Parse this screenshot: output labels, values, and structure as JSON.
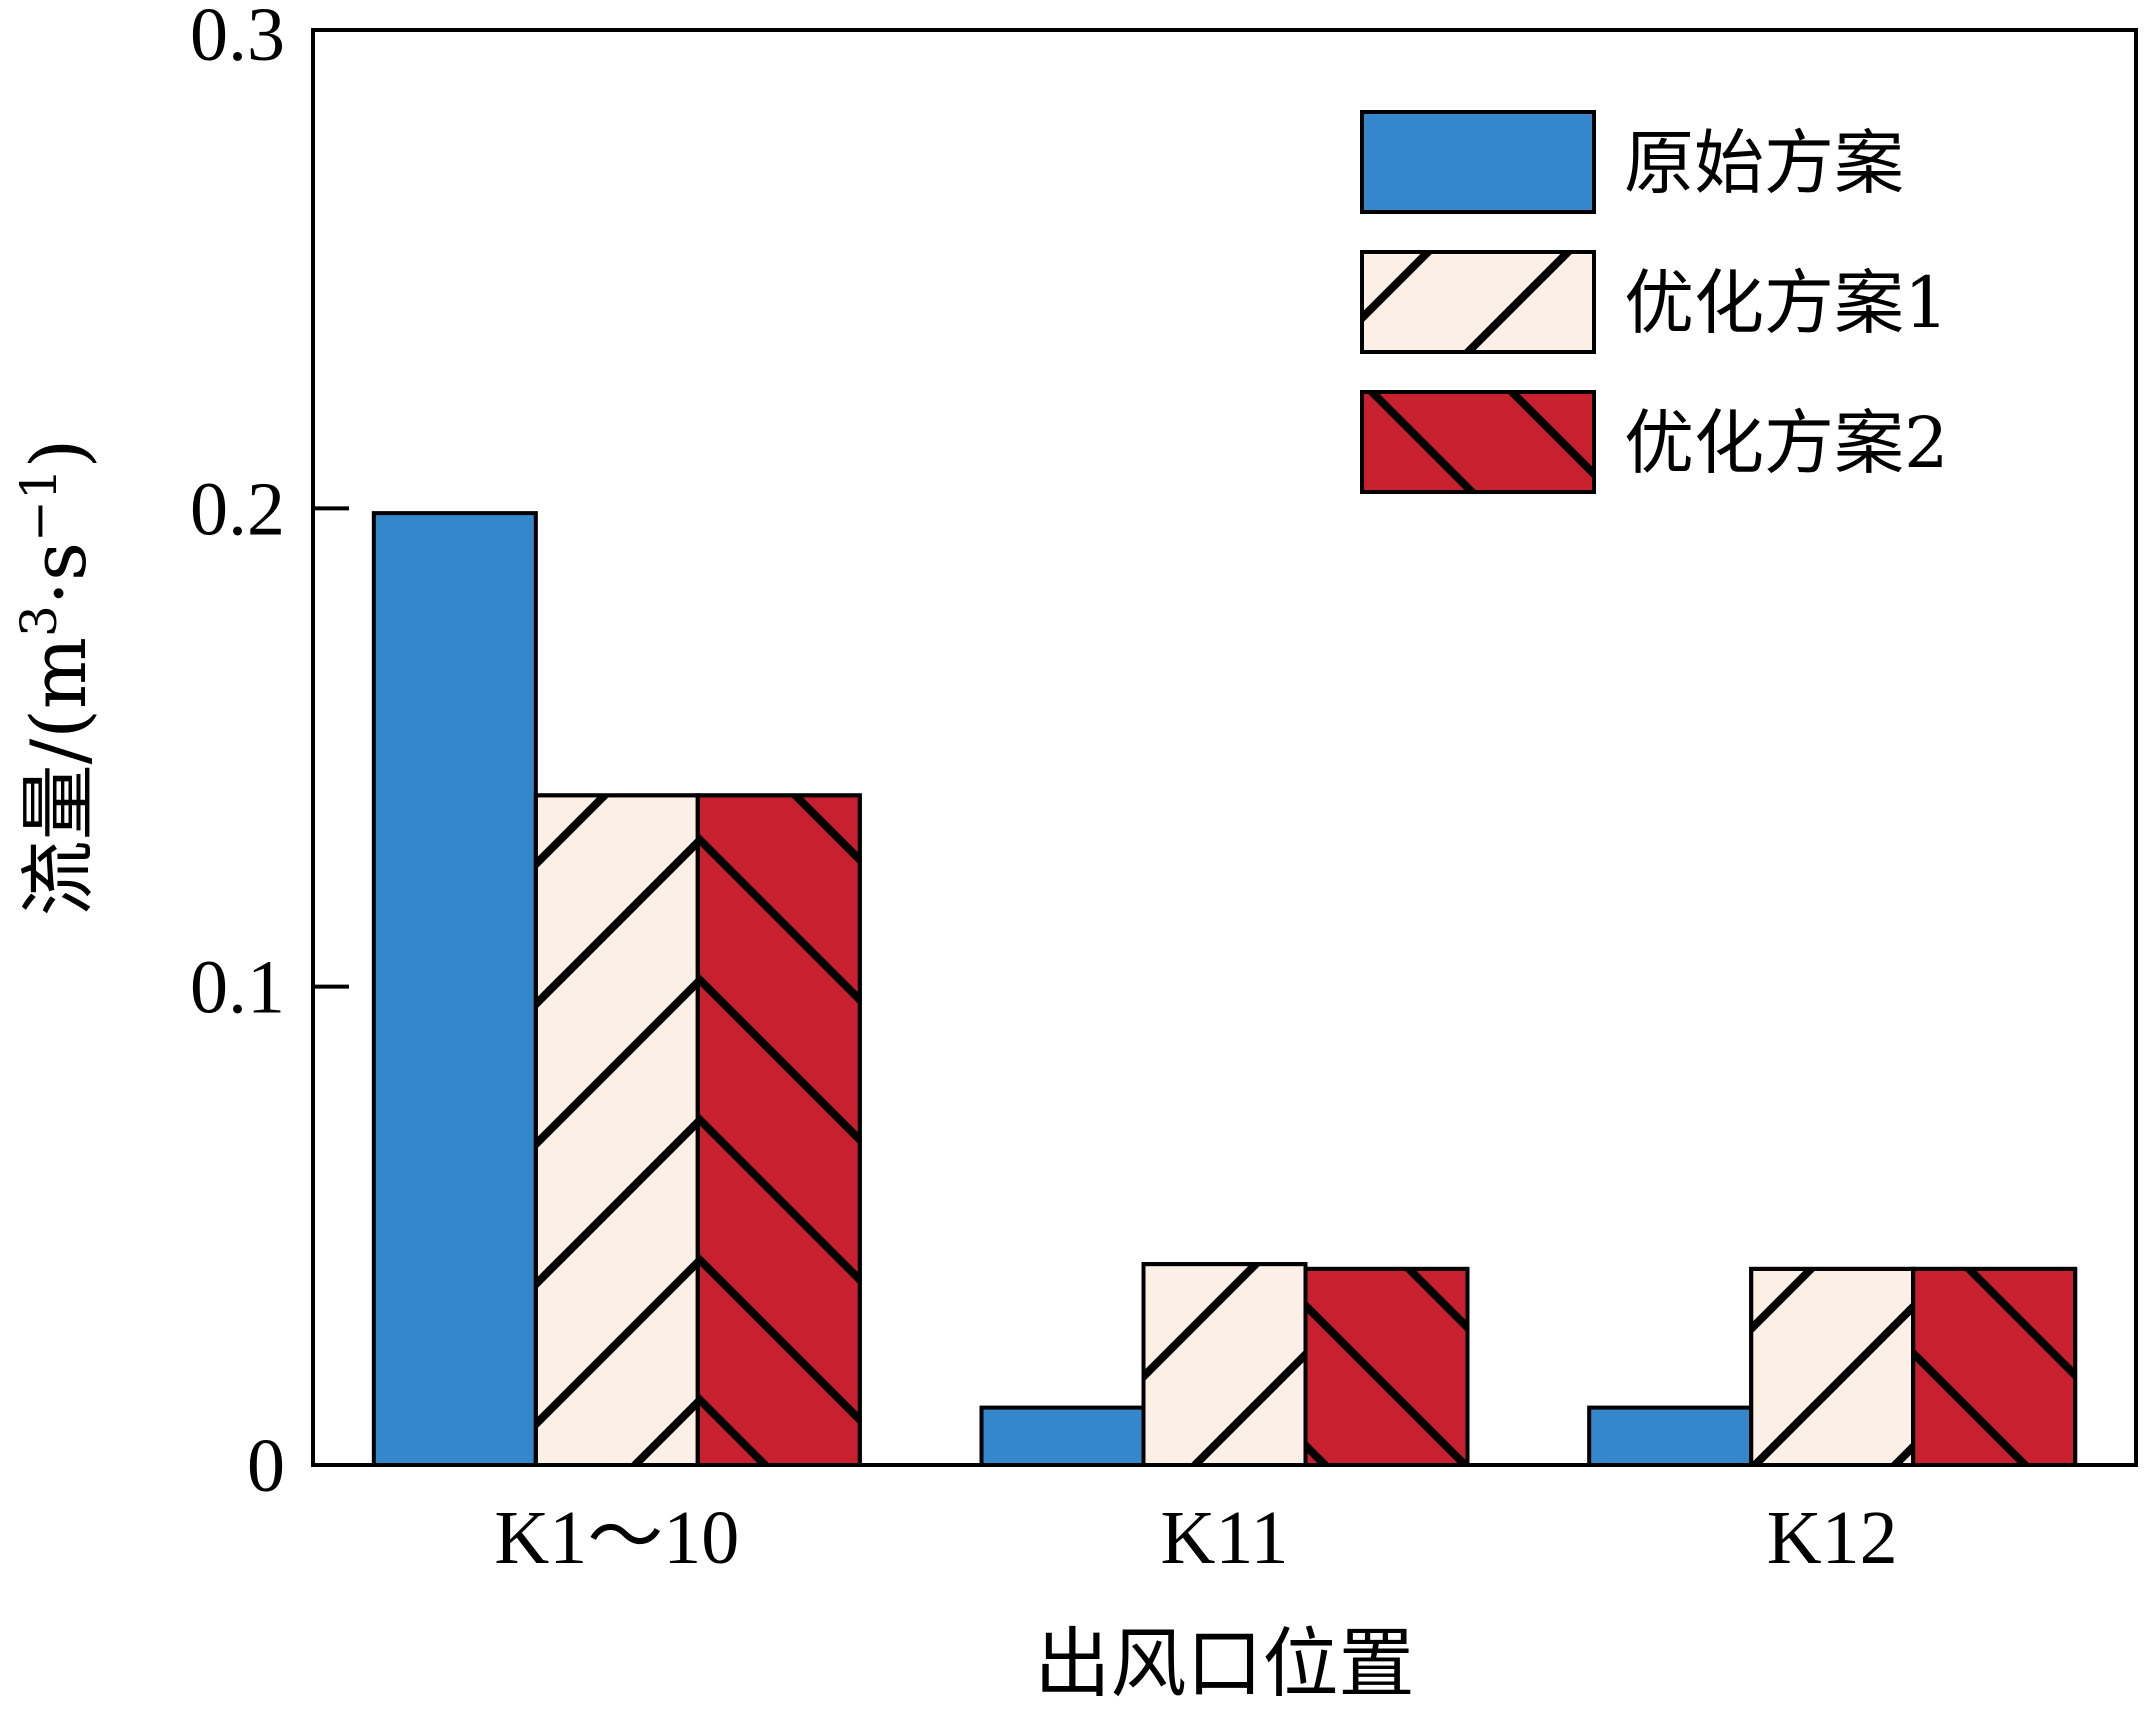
{
  "chart_data": {
    "type": "bar",
    "categories": [
      "K1～10",
      "K11",
      "K12"
    ],
    "series": [
      {
        "name": "原始方案",
        "values": [
          0.199,
          0.012,
          0.012
        ],
        "color": "#3587cb",
        "pattern": "solid"
      },
      {
        "name": "优化方案1",
        "values": [
          0.14,
          0.042,
          0.041
        ],
        "color": "#fcf0e6",
        "pattern": "forward-hatch"
      },
      {
        "name": "优化方案2",
        "values": [
          0.14,
          0.041,
          0.041
        ],
        "color": "#c8202f",
        "pattern": "back-hatch"
      }
    ],
    "xlabel": "出风口位置",
    "ylabel_main": "流量/(m",
    "ylabel_sup1": "3",
    "ylabel_mid": "·s",
    "ylabel_sup2": "−1",
    "ylabel_end": ")",
    "ylim": [
      0,
      0.3
    ],
    "yticks": [
      {
        "value": 0,
        "label": "0"
      },
      {
        "value": 0.1,
        "label": "0.1"
      },
      {
        "value": 0.2,
        "label": "0.2"
      },
      {
        "value": 0.3,
        "label": "0.3"
      }
    ],
    "grid": false,
    "legend_position": "top-right"
  }
}
